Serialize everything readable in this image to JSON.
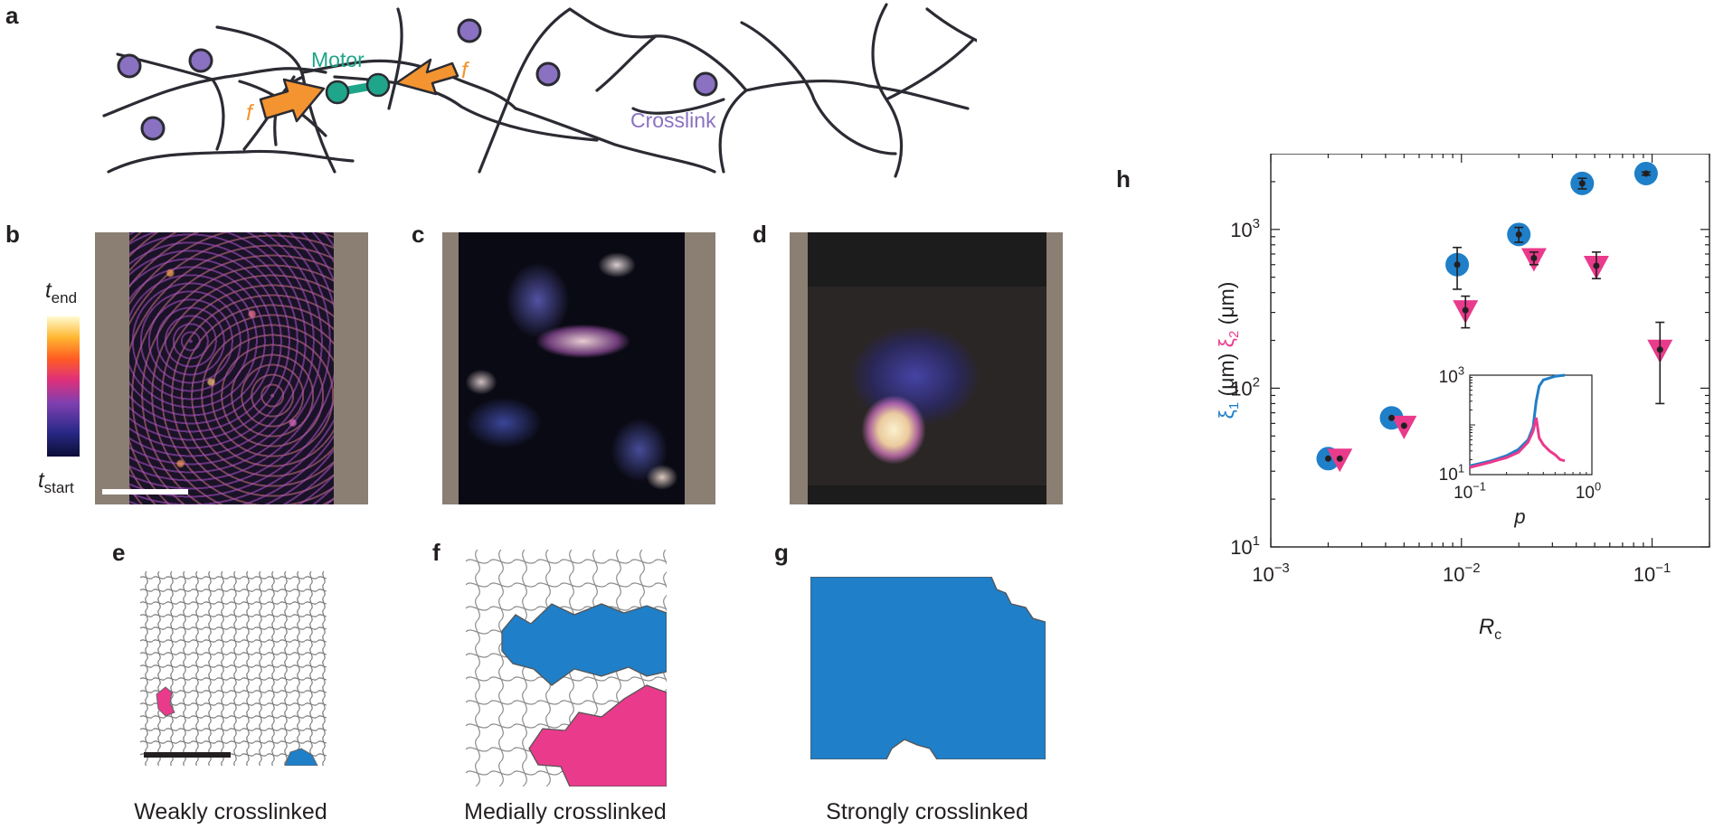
{
  "figure": {
    "panel_labels": {
      "a": "a",
      "b": "b",
      "c": "c",
      "d": "d",
      "e": "e",
      "f": "f",
      "g": "g",
      "h": "h"
    },
    "panel_a": {
      "motor_label": "Motor",
      "force_label": "f",
      "crosslink_label": "Crosslink",
      "colors": {
        "filament": "#2b2b33",
        "crosslink": "#8a71c1",
        "motor": "#1fa58a",
        "arrow": "#f39431"
      }
    },
    "colorbar": {
      "end_label_base": "t",
      "end_label_sub": "end",
      "start_label_base": "t",
      "start_label_sub": "start"
    },
    "captions": {
      "e": "Weakly crosslinked",
      "f": "Medially crosslinked",
      "g": "Strongly crosslinked"
    },
    "cluster_colors": {
      "largest": "#1f7fc8",
      "second": "#ea3a8c"
    }
  },
  "chart_data": [
    {
      "type": "scatter",
      "title": "",
      "xlabel": "R_c",
      "ylabel_parts": [
        "ξ1 (μm)",
        "ξ2 (μm)"
      ],
      "x_scale": "log",
      "y_scale": "log",
      "xlim": [
        0.001,
        0.2
      ],
      "ylim": [
        10,
        3000
      ],
      "x_ticks": [
        0.001,
        0.01,
        0.1
      ],
      "x_tick_labels": [
        {
          "base": "10",
          "exp": "−3"
        },
        {
          "base": "10",
          "exp": "−2"
        },
        {
          "base": "10",
          "exp": "−1"
        }
      ],
      "y_ticks": [
        10,
        100,
        1000
      ],
      "y_tick_labels": [
        {
          "base": "10",
          "exp": "1"
        },
        {
          "base": "10",
          "exp": "2"
        },
        {
          "base": "10",
          "exp": "3"
        }
      ],
      "grid": false,
      "series": [
        {
          "marker": "circle",
          "color": "#1f7fc8",
          "x": [
            0.002,
            0.0043,
            0.0095,
            0.02,
            0.043,
            0.093
          ],
          "y": [
            36,
            65,
            600,
            930,
            1950,
            2250
          ],
          "y_low": [
            36,
            65,
            420,
            830,
            1800,
            2200
          ],
          "y_high": [
            36,
            65,
            770,
            1030,
            2100,
            2300
          ]
        },
        {
          "marker": "triangle-down",
          "color": "#ea3a8c",
          "x": [
            0.0023,
            0.005,
            0.0105,
            0.024,
            0.051,
            0.11
          ],
          "y": [
            36,
            58,
            310,
            660,
            590,
            175
          ],
          "y_low": [
            36,
            58,
            240,
            600,
            490,
            80
          ],
          "y_high": [
            36,
            58,
            380,
            720,
            720,
            260
          ]
        }
      ]
    },
    {
      "type": "line",
      "title": "",
      "xlabel": "p",
      "ylabel": "",
      "x_scale": "log",
      "y_scale": "log",
      "xlim": [
        0.1,
        1.0
      ],
      "ylim": [
        10,
        1000
      ],
      "x_tick_labels": [
        {
          "base": "10",
          "exp": "−1"
        },
        {
          "base": "10",
          "exp": "0"
        }
      ],
      "y_tick_labels": [
        {
          "base": "10",
          "exp": "1"
        },
        {
          "base": "10",
          "exp": "3"
        }
      ],
      "series": [
        {
          "color": "#1f7fc8",
          "x": [
            0.1,
            0.15,
            0.2,
            0.25,
            0.3,
            0.33,
            0.35,
            0.37,
            0.4,
            0.5,
            0.6
          ],
          "y": [
            15,
            19,
            24,
            32,
            50,
            90,
            300,
            600,
            800,
            950,
            1000
          ]
        },
        {
          "color": "#ea3a8c",
          "x": [
            0.1,
            0.15,
            0.2,
            0.25,
            0.3,
            0.33,
            0.35,
            0.37,
            0.4,
            0.45,
            0.5,
            0.55,
            0.6
          ],
          "y": [
            14,
            18,
            22,
            28,
            45,
            75,
            140,
            55,
            40,
            30,
            25,
            20,
            19
          ]
        }
      ]
    }
  ]
}
